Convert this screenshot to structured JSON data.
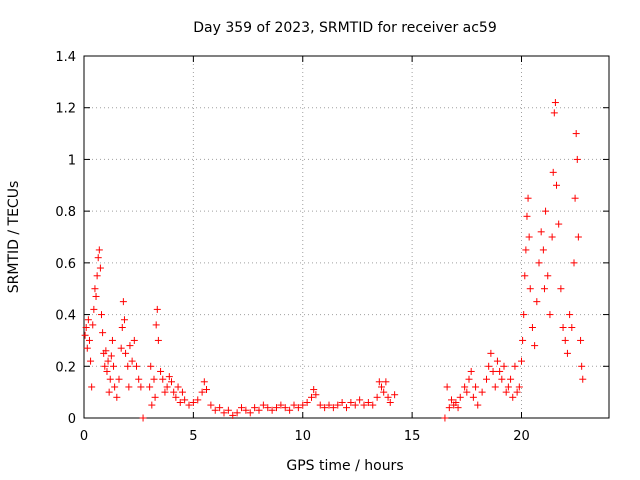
{
  "chart_data": {
    "type": "scatter",
    "title": "Day 359 of 2023, SRMTID for receiver ac59",
    "xlabel": "GPS time / hours",
    "ylabel": "SRMTID / TECUs",
    "xlim": [
      0,
      24
    ],
    "ylim": [
      0,
      1.4
    ],
    "xticks": [
      0,
      5,
      10,
      15,
      20
    ],
    "yticks": [
      0,
      0.2,
      0.4,
      0.6,
      0.8,
      1,
      1.2,
      1.4
    ],
    "xtick_labels": [
      "0",
      "5",
      "10",
      "15",
      "20"
    ],
    "ytick_labels": [
      "0",
      "0.2",
      "0.4",
      "0.6",
      "0.8",
      "1",
      "1.2",
      "1.4"
    ],
    "grid": true,
    "marker": "+",
    "marker_color": "#ff0000",
    "series": [
      {
        "name": "SRMTID",
        "points": [
          [
            0.05,
            0.32
          ],
          [
            0.1,
            0.35
          ],
          [
            0.15,
            0.27
          ],
          [
            0.2,
            0.38
          ],
          [
            0.25,
            0.3
          ],
          [
            0.3,
            0.22
          ],
          [
            0.35,
            0.12
          ],
          [
            0.4,
            0.36
          ],
          [
            0.45,
            0.42
          ],
          [
            0.5,
            0.5
          ],
          [
            0.55,
            0.47
          ],
          [
            0.6,
            0.55
          ],
          [
            0.65,
            0.62
          ],
          [
            0.7,
            0.65
          ],
          [
            0.75,
            0.58
          ],
          [
            0.8,
            0.4
          ],
          [
            0.85,
            0.33
          ],
          [
            0.9,
            0.25
          ],
          [
            0.95,
            0.2
          ],
          [
            1.0,
            0.26
          ],
          [
            1.05,
            0.18
          ],
          [
            1.1,
            0.22
          ],
          [
            1.15,
            0.1
          ],
          [
            1.2,
            0.15
          ],
          [
            1.25,
            0.24
          ],
          [
            1.3,
            0.3
          ],
          [
            1.35,
            0.2
          ],
          [
            1.4,
            0.12
          ],
          [
            1.5,
            0.08
          ],
          [
            1.6,
            0.15
          ],
          [
            1.7,
            0.27
          ],
          [
            1.75,
            0.35
          ],
          [
            1.8,
            0.45
          ],
          [
            1.85,
            0.38
          ],
          [
            1.9,
            0.25
          ],
          [
            2.0,
            0.2
          ],
          [
            2.05,
            0.12
          ],
          [
            2.1,
            0.28
          ],
          [
            2.2,
            0.22
          ],
          [
            2.3,
            0.3
          ],
          [
            2.4,
            0.2
          ],
          [
            2.5,
            0.15
          ],
          [
            2.6,
            0.12
          ],
          [
            2.7,
            0.0
          ],
          [
            3.0,
            0.12
          ],
          [
            3.05,
            0.2
          ],
          [
            3.1,
            0.05
          ],
          [
            3.2,
            0.15
          ],
          [
            3.25,
            0.08
          ],
          [
            3.3,
            0.36
          ],
          [
            3.35,
            0.42
          ],
          [
            3.4,
            0.3
          ],
          [
            3.5,
            0.18
          ],
          [
            3.6,
            0.15
          ],
          [
            3.7,
            0.1
          ],
          [
            3.8,
            0.12
          ],
          [
            3.9,
            0.16
          ],
          [
            4.0,
            0.14
          ],
          [
            4.1,
            0.1
          ],
          [
            4.2,
            0.08
          ],
          [
            4.3,
            0.12
          ],
          [
            4.4,
            0.06
          ],
          [
            4.5,
            0.1
          ],
          [
            4.6,
            0.07
          ],
          [
            4.8,
            0.05
          ],
          [
            5.0,
            0.06
          ],
          [
            5.2,
            0.07
          ],
          [
            5.4,
            0.1
          ],
          [
            5.5,
            0.14
          ],
          [
            5.6,
            0.11
          ],
          [
            5.8,
            0.05
          ],
          [
            6.0,
            0.03
          ],
          [
            6.2,
            0.04
          ],
          [
            6.4,
            0.02
          ],
          [
            6.6,
            0.03
          ],
          [
            6.8,
            0.01
          ],
          [
            7.0,
            0.02
          ],
          [
            7.2,
            0.04
          ],
          [
            7.4,
            0.03
          ],
          [
            7.6,
            0.02
          ],
          [
            7.8,
            0.04
          ],
          [
            8.0,
            0.03
          ],
          [
            8.2,
            0.05
          ],
          [
            8.4,
            0.04
          ],
          [
            8.6,
            0.03
          ],
          [
            8.8,
            0.04
          ],
          [
            9.0,
            0.05
          ],
          [
            9.2,
            0.04
          ],
          [
            9.4,
            0.03
          ],
          [
            9.6,
            0.05
          ],
          [
            9.8,
            0.04
          ],
          [
            10.0,
            0.05
          ],
          [
            10.2,
            0.06
          ],
          [
            10.4,
            0.08
          ],
          [
            10.5,
            0.11
          ],
          [
            10.6,
            0.09
          ],
          [
            10.8,
            0.05
          ],
          [
            11.0,
            0.04
          ],
          [
            11.2,
            0.05
          ],
          [
            11.4,
            0.04
          ],
          [
            11.6,
            0.05
          ],
          [
            11.8,
            0.06
          ],
          [
            12.0,
            0.04
          ],
          [
            12.2,
            0.06
          ],
          [
            12.4,
            0.05
          ],
          [
            12.6,
            0.07
          ],
          [
            12.8,
            0.05
          ],
          [
            13.0,
            0.06
          ],
          [
            13.2,
            0.05
          ],
          [
            13.4,
            0.08
          ],
          [
            13.5,
            0.14
          ],
          [
            13.6,
            0.12
          ],
          [
            13.7,
            0.1
          ],
          [
            13.8,
            0.14
          ],
          [
            13.9,
            0.08
          ],
          [
            14.0,
            0.06
          ],
          [
            14.2,
            0.09
          ],
          [
            16.5,
            0.0
          ],
          [
            16.6,
            0.12
          ],
          [
            16.7,
            0.04
          ],
          [
            16.8,
            0.07
          ],
          [
            16.9,
            0.05
          ],
          [
            17.0,
            0.06
          ],
          [
            17.1,
            0.04
          ],
          [
            17.2,
            0.08
          ],
          [
            17.4,
            0.12
          ],
          [
            17.5,
            0.1
          ],
          [
            17.6,
            0.15
          ],
          [
            17.7,
            0.18
          ],
          [
            17.8,
            0.08
          ],
          [
            17.9,
            0.12
          ],
          [
            18.0,
            0.05
          ],
          [
            18.2,
            0.1
          ],
          [
            18.4,
            0.15
          ],
          [
            18.5,
            0.2
          ],
          [
            18.6,
            0.25
          ],
          [
            18.7,
            0.18
          ],
          [
            18.8,
            0.12
          ],
          [
            18.9,
            0.22
          ],
          [
            19.0,
            0.18
          ],
          [
            19.1,
            0.15
          ],
          [
            19.2,
            0.2
          ],
          [
            19.3,
            0.1
          ],
          [
            19.4,
            0.12
          ],
          [
            19.5,
            0.15
          ],
          [
            19.6,
            0.08
          ],
          [
            19.7,
            0.2
          ],
          [
            19.8,
            0.1
          ],
          [
            19.9,
            0.12
          ],
          [
            20.0,
            0.22
          ],
          [
            20.05,
            0.3
          ],
          [
            20.1,
            0.4
          ],
          [
            20.15,
            0.55
          ],
          [
            20.2,
            0.65
          ],
          [
            20.25,
            0.78
          ],
          [
            20.3,
            0.85
          ],
          [
            20.35,
            0.7
          ],
          [
            20.4,
            0.5
          ],
          [
            20.5,
            0.35
          ],
          [
            20.6,
            0.28
          ],
          [
            20.7,
            0.45
          ],
          [
            20.8,
            0.6
          ],
          [
            20.9,
            0.72
          ],
          [
            21.0,
            0.65
          ],
          [
            21.05,
            0.5
          ],
          [
            21.1,
            0.8
          ],
          [
            21.2,
            0.55
          ],
          [
            21.3,
            0.4
          ],
          [
            21.4,
            0.7
          ],
          [
            21.45,
            0.95
          ],
          [
            21.5,
            1.18
          ],
          [
            21.55,
            1.22
          ],
          [
            21.6,
            0.9
          ],
          [
            21.7,
            0.75
          ],
          [
            21.8,
            0.5
          ],
          [
            21.9,
            0.35
          ],
          [
            22.0,
            0.3
          ],
          [
            22.1,
            0.25
          ],
          [
            22.2,
            0.4
          ],
          [
            22.3,
            0.35
          ],
          [
            22.4,
            0.6
          ],
          [
            22.45,
            0.85
          ],
          [
            22.5,
            1.1
          ],
          [
            22.55,
            1.0
          ],
          [
            22.6,
            0.7
          ],
          [
            22.7,
            0.3
          ],
          [
            22.75,
            0.2
          ],
          [
            22.8,
            0.15
          ]
        ]
      }
    ]
  }
}
